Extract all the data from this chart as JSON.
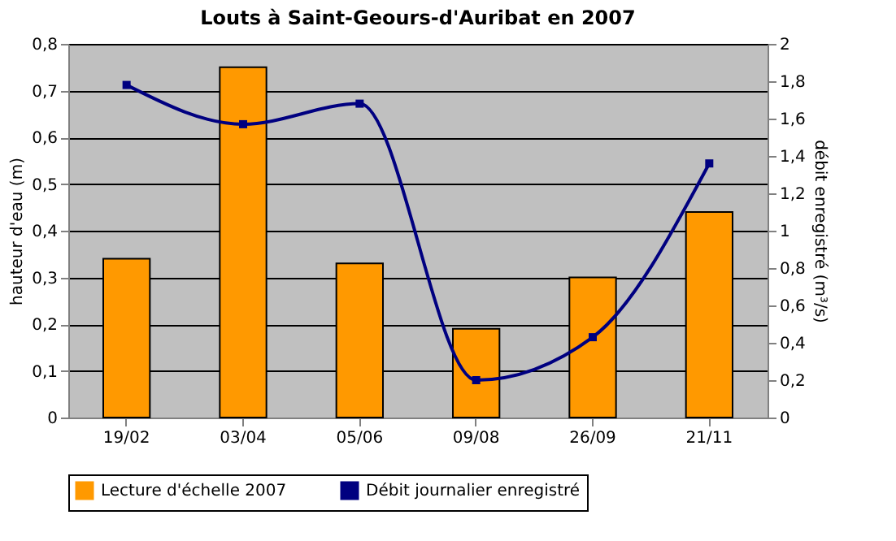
{
  "chart_data": {
    "type": "bar",
    "title": "Louts à Saint-Geours-d'Auribat en 2007",
    "ylabel": "hauteur d'eau (m)",
    "y2label": "débit enregistré (m³/s)",
    "categories": [
      "19/02",
      "03/04",
      "05/06",
      "09/08",
      "26/09",
      "21/11"
    ],
    "series": [
      {
        "name": "Lecture d'échelle 2007",
        "color": "#ff9900",
        "values": [
          0.34,
          0.75,
          0.33,
          0.19,
          0.3,
          0.44
        ]
      },
      {
        "name": "Débit journalier enregistré",
        "type": "line",
        "axis": "y2",
        "color": "#000080",
        "marker": "square",
        "values": [
          1.78,
          1.57,
          1.68,
          0.2,
          0.43,
          1.36
        ]
      }
    ],
    "ylim": [
      0,
      0.8
    ],
    "yticks": [
      0,
      {
        "value": 0.1,
        "label": "0,1"
      },
      {
        "value": 0.2,
        "label": "0,2"
      },
      {
        "value": 0.3,
        "label": "0,3"
      },
      {
        "value": 0.4,
        "label": "0,4"
      },
      {
        "value": 0.5,
        "label": "0,5"
      },
      {
        "value": 0.6,
        "label": "0,6"
      },
      {
        "value": 0.7,
        "label": "0,7"
      },
      {
        "value": 0.8,
        "label": "0,8"
      }
    ],
    "y2lim": [
      0,
      2
    ],
    "y2ticks": [
      0,
      {
        "value": 0.2,
        "label": "0,2"
      },
      {
        "value": 0.4,
        "label": "0,4"
      },
      {
        "value": 0.6,
        "label": "0,6"
      },
      {
        "value": 0.8,
        "label": "0,8"
      },
      1,
      {
        "value": 1.2,
        "label": "1,2"
      },
      {
        "value": 1.4,
        "label": "1,4"
      },
      {
        "value": 1.6,
        "label": "1,6"
      },
      {
        "value": 1.8,
        "label": "1,8"
      },
      2
    ],
    "grid": "y",
    "legend": "bottom"
  }
}
